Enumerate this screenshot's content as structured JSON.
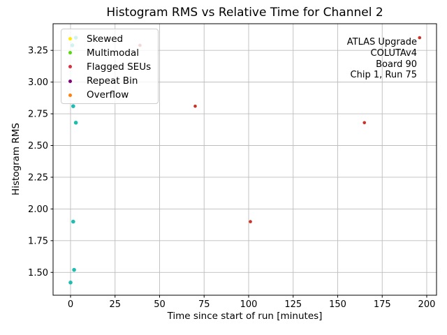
{
  "chart_data": {
    "type": "scatter",
    "title": "Histogram RMS vs Relative Time for Channel 2",
    "xlabel": "Time since start of run [minutes]",
    "ylabel": "Histogram RMS",
    "xlim": [
      -9.8,
      205.5
    ],
    "ylim": [
      1.32,
      3.46
    ],
    "xticks": [
      0,
      25,
      50,
      75,
      100,
      125,
      150,
      175,
      200
    ],
    "xtick_labels": [
      "0",
      "25",
      "50",
      "75",
      "100",
      "125",
      "150",
      "175",
      "200"
    ],
    "yticks": [
      1.5,
      1.75,
      2.0,
      2.25,
      2.5,
      2.75,
      3.0,
      3.25
    ],
    "ytick_labels": [
      "1.50",
      "1.75",
      "2.00",
      "2.25",
      "2.50",
      "2.75",
      "3.00",
      "3.25"
    ],
    "grid": true,
    "grid_color": "#bdbdbd",
    "spine_color": "#000000",
    "legend": {
      "position": "upper-left",
      "entries": [
        {
          "label": "Skewed",
          "color": "#ffeb00"
        },
        {
          "label": "Multimodal",
          "color": "#58d80e"
        },
        {
          "label": "Flagged SEUs",
          "color": "#d93040"
        },
        {
          "label": "Repeat Bin",
          "color": "#800080"
        },
        {
          "label": "Overflow",
          "color": "#ff810d"
        }
      ]
    },
    "annotation": {
      "align": "right",
      "lines": [
        "ATLAS Upgrade",
        "COLUTAv4",
        "Board 90",
        "Chip 1, Run 75"
      ]
    },
    "series": [
      {
        "name": "Channel 2 histogram RMS",
        "color": "#1fbcb2",
        "points": [
          [
            0,
            1.42
          ],
          [
            1,
            3.29
          ],
          [
            1.5,
            1.9
          ],
          [
            1.5,
            2.81
          ],
          [
            2,
            1.52
          ],
          [
            3,
            2.68
          ],
          [
            3,
            3.35
          ]
        ]
      },
      {
        "name": "Flagged SEUs",
        "color": "#c93226",
        "points": [
          [
            39,
            3.29
          ],
          [
            70,
            2.81
          ],
          [
            101,
            1.9
          ],
          [
            165,
            2.68
          ],
          [
            196,
            3.35
          ]
        ]
      }
    ]
  }
}
